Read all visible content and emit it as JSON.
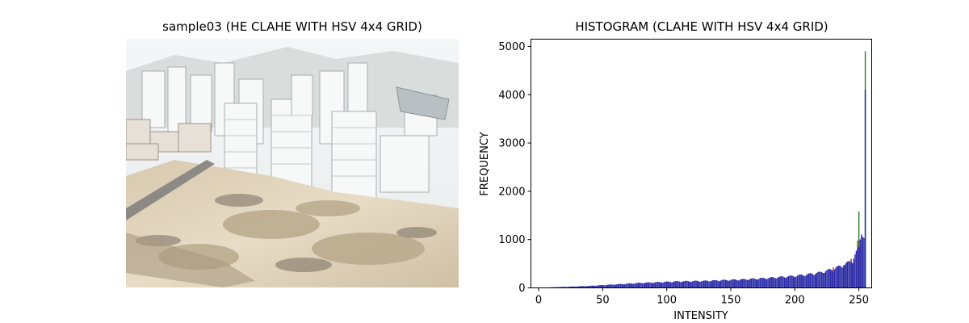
{
  "left_panel": {
    "title": "sample03 (HE CLAHE WITH HSV 4x4 GRID)",
    "image_description_name": "cityscape-photo"
  },
  "chart_data": {
    "type": "bar",
    "title": "HISTOGRAM (CLAHE WITH HSV 4x4 GRID)",
    "xlabel": "INTENSITY",
    "ylabel": "FREQUENCY",
    "xlim": [
      -6,
      260
    ],
    "ylim": [
      0,
      5150
    ],
    "xticks": [
      0,
      50,
      100,
      150,
      200,
      250
    ],
    "yticks": [
      0,
      1000,
      2000,
      3000,
      4000,
      5000
    ],
    "grid": false,
    "series": [
      {
        "color": "#2a2aa8",
        "values_by_intensity": {
          "0": 0,
          "4": 5,
          "10": 12,
          "20": 20,
          "30": 30,
          "40": 40,
          "50": 55,
          "60": 70,
          "70": 85,
          "80": 100,
          "90": 110,
          "100": 120,
          "110": 130,
          "120": 135,
          "130": 140,
          "140": 150,
          "150": 160,
          "160": 170,
          "170": 185,
          "180": 200,
          "190": 220,
          "200": 240,
          "210": 270,
          "220": 310,
          "230": 380,
          "240": 480,
          "245": 560,
          "250": 800,
          "252": 1200,
          "254": 1000,
          "255": 4100
        }
      },
      {
        "color": "#2e7d32",
        "peak": 4900
      },
      {
        "color": "#c62828",
        "peak": 1580
      }
    ]
  }
}
